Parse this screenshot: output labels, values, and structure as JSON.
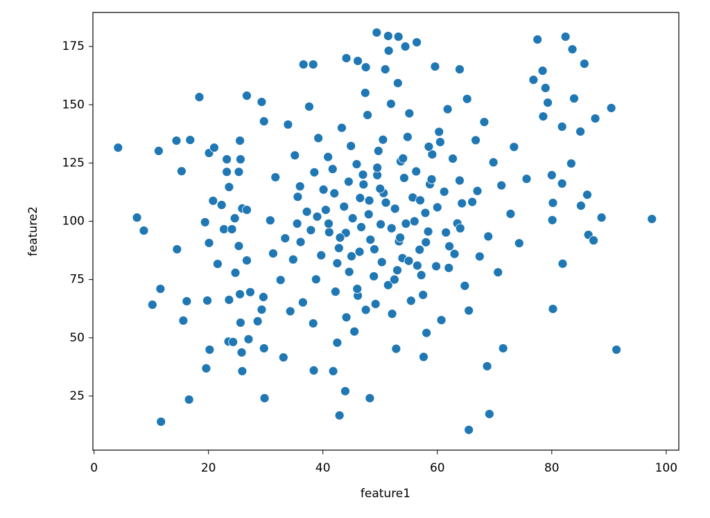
{
  "chart_data": {
    "type": "scatter",
    "xlabel": "feature1",
    "ylabel": "feature2",
    "color": "#1f77b4",
    "xlim": [
      -0.2,
      102.2
    ],
    "ylim": [
      1.8,
      189.6
    ],
    "xticks": [
      0,
      20,
      40,
      60,
      80,
      100
    ],
    "yticks": [
      25,
      50,
      75,
      100,
      125,
      150,
      175
    ],
    "grid": false,
    "x": [
      4.2,
      7.5,
      8.7,
      11.3,
      11.6,
      10.2,
      11.7,
      14.4,
      14.5,
      15.3,
      15.6,
      16.2,
      16.6,
      16.8,
      18.4,
      19.6,
      19.8,
      20.2,
      29.8,
      33.1,
      38.4,
      42.9,
      43.9,
      48.2,
      41.8,
      65.5,
      69.1,
      68.7,
      71.5,
      91.3,
      97.5,
      90.4,
      87.6,
      82.4,
      77.5,
      83.6,
      85.7,
      83.9,
      49.4,
      51.4,
      53.2,
      54.4,
      56.4,
      51.5,
      36.6,
      38.3,
      44.1,
      46.1,
      47.5,
      50.9,
      59.6,
      63.9,
      80.2,
      81.9,
      86.4,
      87.3,
      88.7,
      86.2,
      85.1,
      81.8,
      80,
      83.4,
      85,
      81.8,
      78.5,
      79.3,
      78.9,
      76.8,
      78.4,
      80.1,
      80.2,
      20.1,
      21,
      23.2,
      23.2,
      23.6,
      25.5,
      26.7,
      29.3,
      29.7,
      25.6,
      25.3,
      20.8,
      22.3,
      19.4,
      20.1,
      21.6,
      22.7,
      24.1,
      24.6,
      25.9,
      26.7,
      25.3,
      23.6,
      25.5,
      24.7,
      26.7,
      27.3,
      25.6,
      27,
      25.8,
      25.9,
      23.5,
      24.3,
      28.6,
      29.7,
      29.6,
      29.3,
      45.2,
      50.1,
      52.6,
      48.3,
      55.7,
      42.8,
      58.4,
      47.1,
      53.9,
      40.5,
      61.2,
      44.6,
      56.3,
      37.9,
      51.4,
      63.5,
      49.7,
      35.6,
      59.8,
      46.4,
      54.2,
      41.7,
      66.1,
      38.8,
      57.5,
      43.3,
      62.7,
      33.4,
      52.1,
      68.9,
      47.8,
      36.5,
      60.3,
      44.1,
      71.2,
      31.7,
      55.1,
      64.8,
      39.2,
      50.6,
      57.9,
      45.9,
      34.8,
      67.4,
      53.3,
      42.2,
      59.1,
      48.9,
      40.1,
      62.1,
      37.2,
      54.8,
      69.8,
      46.7,
      32.6,
      58.7,
      43.7,
      65.5,
      51.9,
      38.3,
      72.8,
      49.2,
      56.9,
      35.1,
      61.8,
      45.5,
      70.6,
      41.1,
      53.6,
      60.7,
      48.1,
      33.9,
      66.7,
      39.7,
      57.2,
      44.9,
      74.3,
      52.8,
      37.6,
      63.9,
      30.8,
      55.4,
      47.4,
      68.2,
      42.5,
      58.1,
      36.1,
      64.3,
      50.3,
      75.6,
      34.3,
      61.5,
      46.1,
      53.1,
      73.4,
      40.9,
      57.6,
      65.2,
      31.3,
      49.5,
      44,
      51,
      49,
      56,
      47,
      53,
      42,
      58,
      46,
      52,
      39,
      60,
      50,
      55,
      43,
      48,
      57,
      54,
      45,
      62,
      41,
      59,
      36,
      64,
      50.5,
      47.5,
      53.5,
      44.5,
      56.5,
      38.5,
      60.5,
      42.5,
      54.5,
      49.5,
      67,
      35.5,
      63,
      46.5,
      52.5,
      58.5
    ],
    "y": [
      131.6,
      101.6,
      96,
      130.2,
      71,
      64.2,
      14,
      134.6,
      88,
      121.5,
      57.4,
      65.7,
      23.5,
      134.9,
      153.3,
      36.9,
      66,
      44.9,
      24.1,
      41.6,
      36,
      16.7,
      27.1,
      24.1,
      35.7,
      10.5,
      17.3,
      37.8,
      45.5,
      44.9,
      101,
      148.6,
      144.1,
      179.2,
      178,
      173.8,
      167.6,
      152.7,
      181,
      179.5,
      179.2,
      175,
      176.8,
      173.2,
      167.3,
      167.3,
      170,
      168.8,
      166.1,
      165.2,
      166.4,
      165.2,
      62.4,
      81.8,
      94.2,
      91.8,
      101.6,
      111.4,
      106.7,
      116.2,
      119.8,
      124.8,
      138.5,
      140.6,
      145,
      150.9,
      157.2,
      160.7,
      164.6,
      100.5,
      107.9,
      129.3,
      131.6,
      126.6,
      121.2,
      114.7,
      134.6,
      153.9,
      151.2,
      142.9,
      126.6,
      121.2,
      108.8,
      107,
      99.6,
      90.7,
      81.7,
      96.6,
      96.6,
      101.3,
      105.5,
      104.9,
      89.4,
      66.3,
      68.7,
      77.9,
      83.2,
      69.6,
      56.5,
      49.4,
      43.7,
      35.7,
      48.4,
      48.2,
      57.1,
      45.5,
      67.5,
      62.1,
      101.3,
      98.7,
      105.4,
      92.1,
      110.2,
      88.5,
      95.6,
      115.8,
      84.2,
      104.9,
      112.7,
      78.3,
      121.4,
      96.2,
      72.6,
      99.1,
      130.2,
      110.5,
      80.7,
      86.9,
      118.6,
      122.4,
      108.3,
      75.1,
      68.4,
      140.1,
      126.9,
      92.7,
      60.3,
      93.5,
      145.6,
      65.2,
      138.4,
      58.8,
      115.4,
      118.9,
      146.3,
      72.3,
      135.7,
      112.1,
      103.6,
      124.5,
      83.6,
      84.9,
      91.4,
      69.8,
      128.7,
      76.4,
      113.6,
      89.3,
      104.1,
      136.2,
      125.3,
      97.5,
      74.8,
      115.9,
      106.3,
      61.7,
      150.4,
      56.2,
      103.2,
      64.5,
      87.8,
      128.3,
      148.1,
      52.7,
      78.1,
      95.3,
      125.7,
      57.6,
      108.9,
      141.5,
      134.8,
      85.4,
      76.9,
      132.3,
      90.6,
      45.3,
      149.2,
      117.5,
      100.4,
      65.9,
      155.1,
      142.6,
      47.9,
      52.1,
      91.1,
      107.7,
      82.5,
      118.2,
      61.4,
      95.2,
      68.1,
      159.3,
      131.9,
      127.6,
      41.8,
      152.5,
      86.2,
      119.8,
      95,
      108,
      88,
      100,
      120,
      79,
      112,
      91,
      71,
      97,
      102,
      106,
      114,
      83,
      93,
      103,
      109,
      127,
      85,
      80,
      99,
      118,
      115,
      97,
      135,
      62,
      93,
      117,
      81,
      121,
      134,
      82,
      99,
      123,
      113,
      99,
      86,
      110,
      75,
      132
    ]
  }
}
